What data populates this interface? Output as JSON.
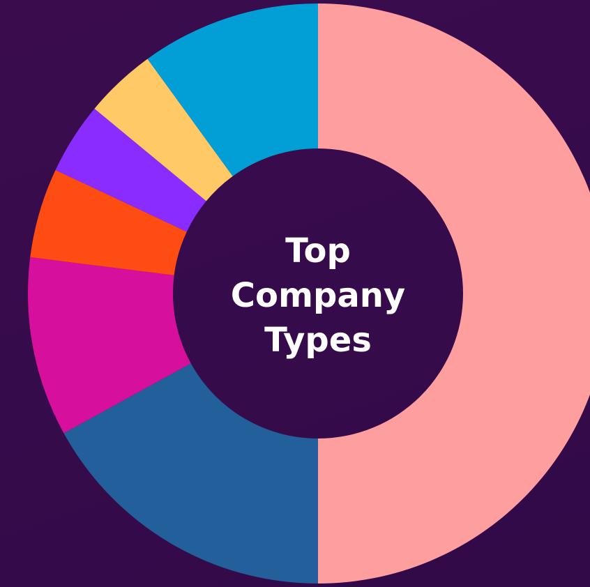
{
  "chart_data": {
    "type": "donut",
    "title": "Top Company Types",
    "values": [
      50,
      17,
      10,
      5,
      4,
      4,
      10
    ],
    "colors": [
      "#ff9e9e",
      "#235f9a",
      "#d60f9c",
      "#ff4c12",
      "#8a2cff",
      "#ffc966",
      "#029fd7"
    ]
  }
}
